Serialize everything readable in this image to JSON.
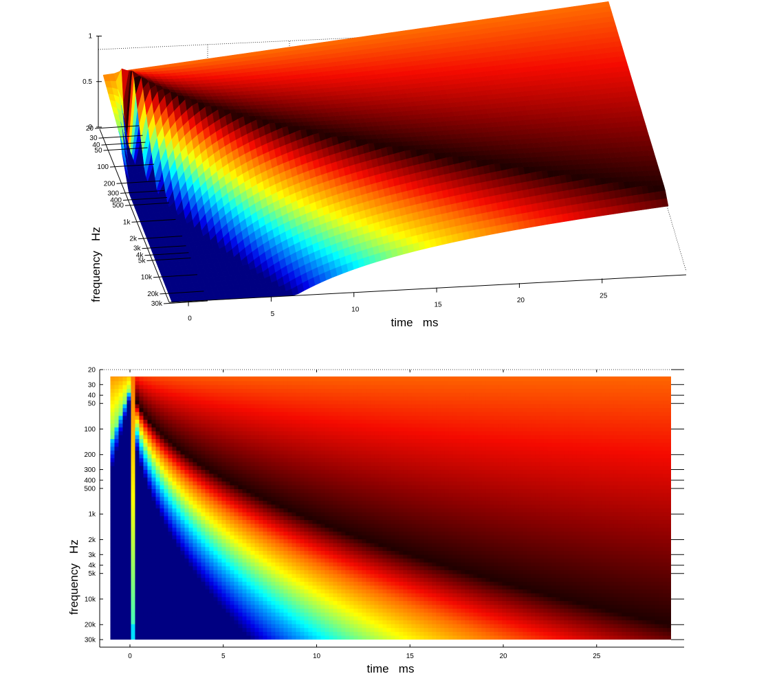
{
  "chart_data": [
    {
      "type": "surface",
      "view": "3d",
      "xlabel": "time   ms",
      "ylabel": "frequency   Hz",
      "zlabel": "",
      "xlim": [
        -1,
        29
      ],
      "ylim": [
        20,
        30000
      ],
      "zlim": [
        0,
        1
      ],
      "y_scale": "log",
      "x_ticks": [
        0,
        5,
        10,
        15,
        20,
        25
      ],
      "x_tick_labels": [
        "0",
        "5",
        "10",
        "15",
        "20",
        "25"
      ],
      "y_ticks": [
        20,
        30,
        40,
        50,
        100,
        200,
        300,
        400,
        500,
        1000,
        2000,
        3000,
        4000,
        5000,
        10000,
        20000,
        30000
      ],
      "y_tick_labels": [
        "20",
        "30",
        "40",
        "50",
        "100",
        "200",
        "300",
        "400",
        "500",
        "1k",
        "2k",
        "3k",
        "4k",
        "5k",
        "10k",
        "20k",
        "30k"
      ],
      "z_ticks": [
        0,
        0.5,
        1
      ],
      "z_tick_labels": [
        "0",
        "0.5",
        "1"
      ],
      "colormap": "jet",
      "grid": true,
      "legend": "none"
    },
    {
      "type": "heatmap",
      "view": "top",
      "xlabel": "time   ms",
      "ylabel": "frequency   Hz",
      "xlim": [
        -1,
        29
      ],
      "ylim": [
        20,
        30000
      ],
      "y_scale": "log",
      "x_ticks": [
        0,
        5,
        10,
        15,
        20,
        25
      ],
      "x_tick_labels": [
        "0",
        "5",
        "10",
        "15",
        "20",
        "25"
      ],
      "y_ticks": [
        20,
        30,
        40,
        50,
        100,
        200,
        300,
        400,
        500,
        1000,
        2000,
        3000,
        4000,
        5000,
        10000,
        20000,
        30000
      ],
      "y_tick_labels": [
        "20",
        "30",
        "40",
        "50",
        "100",
        "200",
        "300",
        "400",
        "500",
        "1k",
        "2k",
        "3k",
        "4k",
        "5k",
        "10k",
        "20k",
        "30k"
      ],
      "colormap": "jet",
      "grid": true,
      "legend": "none"
    }
  ]
}
